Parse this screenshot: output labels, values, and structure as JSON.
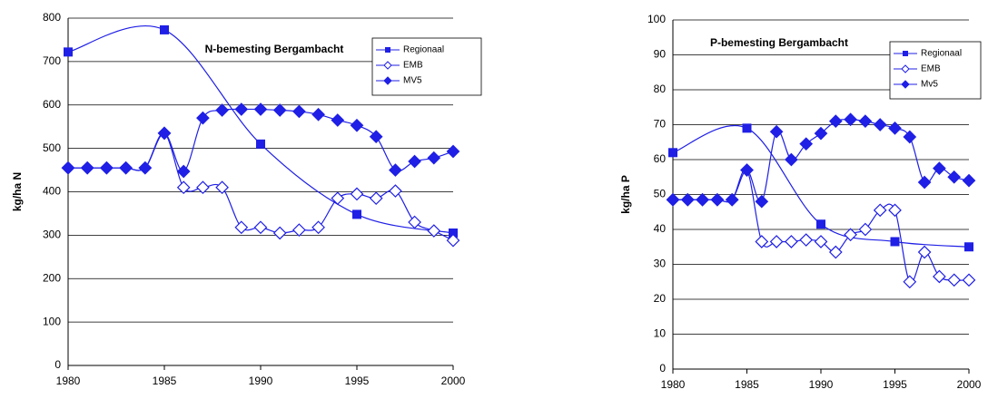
{
  "chart_data": [
    {
      "type": "line",
      "title": "N-bemesting Bergambacht",
      "y_label": "kg/ha N",
      "xlim": [
        1980,
        2000
      ],
      "xticks": [
        1980,
        1985,
        1990,
        1995,
        2000
      ],
      "ylim": [
        0,
        800
      ],
      "yticks": [
        0,
        100,
        200,
        300,
        400,
        500,
        600,
        700,
        800
      ],
      "grid": true,
      "smooth": true,
      "series": [
        {
          "name": "Regionaal",
          "color": "#1f1fe6",
          "marker": "square",
          "x": [
            1980,
            1985,
            1990,
            1995,
            2000
          ],
          "values": [
            722,
            773,
            510,
            348,
            305
          ]
        },
        {
          "name": "EMB",
          "color": "#1f1fe6",
          "marker": "open-diamond",
          "x": [
            1980,
            1981,
            1982,
            1983,
            1984,
            1985,
            1986,
            1987,
            1988,
            1989,
            1990,
            1991,
            1992,
            1993,
            1994,
            1995,
            1996,
            1997,
            1998,
            1999,
            2000
          ],
          "values": [
            455,
            455,
            455,
            455,
            455,
            535,
            410,
            410,
            410,
            318,
            318,
            305,
            312,
            318,
            385,
            395,
            385,
            402,
            330,
            310,
            288
          ]
        },
        {
          "name": "MV5",
          "color": "#1f1fe6",
          "marker": "diamond",
          "x": [
            1980,
            1981,
            1982,
            1983,
            1984,
            1985,
            1986,
            1987,
            1988,
            1989,
            1990,
            1991,
            1992,
            1993,
            1994,
            1995,
            1996,
            1997,
            1998,
            1999,
            2000
          ],
          "values": [
            455,
            455,
            455,
            455,
            455,
            535,
            447,
            570,
            588,
            590,
            590,
            588,
            585,
            578,
            565,
            553,
            527,
            450,
            470,
            478,
            493
          ]
        }
      ]
    },
    {
      "type": "line",
      "title": "P-bemesting Bergambacht",
      "y_label": "kg/ha P",
      "xlim": [
        1980,
        2000
      ],
      "xticks": [
        1980,
        1985,
        1990,
        1995,
        2000
      ],
      "ylim": [
        0,
        100
      ],
      "yticks": [
        0,
        10,
        20,
        30,
        40,
        50,
        60,
        70,
        80,
        90,
        100
      ],
      "grid": true,
      "smooth": true,
      "series": [
        {
          "name": "Regionaal",
          "color": "#1f1fe6",
          "marker": "square",
          "x": [
            1980,
            1985,
            1990,
            1995,
            2000
          ],
          "values": [
            62,
            69,
            41.5,
            36.5,
            35
          ]
        },
        {
          "name": "EMB",
          "color": "#1f1fe6",
          "marker": "open-diamond",
          "x": [
            1980,
            1981,
            1982,
            1983,
            1984,
            1985,
            1986,
            1987,
            1988,
            1989,
            1990,
            1991,
            1992,
            1993,
            1994,
            1995,
            1996,
            1997,
            1998,
            1999,
            2000
          ],
          "values": [
            48.5,
            48.5,
            48.5,
            48.5,
            48.5,
            57,
            36.5,
            36.5,
            36.5,
            37,
            36.5,
            33.5,
            38.5,
            40,
            45.5,
            45.5,
            25,
            33.5,
            26.5,
            25.5,
            25.5
          ]
        },
        {
          "name": "Mv5",
          "color": "#1f1fe6",
          "marker": "diamond",
          "x": [
            1980,
            1981,
            1982,
            1983,
            1984,
            1985,
            1986,
            1987,
            1988,
            1989,
            1990,
            1991,
            1992,
            1993,
            1994,
            1995,
            1996,
            1997,
            1998,
            1999,
            2000
          ],
          "values": [
            48.5,
            48.5,
            48.5,
            48.5,
            48.5,
            57,
            48,
            68,
            60,
            64.5,
            67.5,
            71,
            71.5,
            71,
            70,
            69,
            66.5,
            53.5,
            57.5,
            55,
            54
          ]
        }
      ]
    }
  ]
}
